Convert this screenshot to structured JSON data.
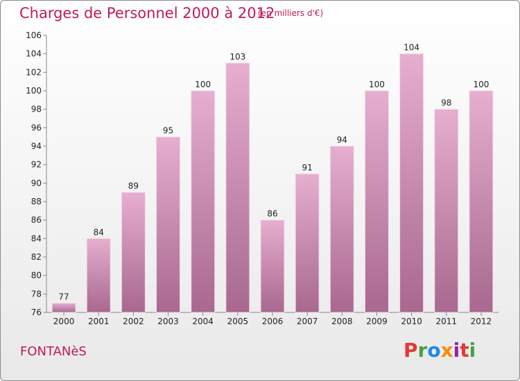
{
  "header": {
    "title": "Charges de Personnel 2000 à 2012",
    "subtitle": "(en milliers d'€)"
  },
  "footer": {
    "commune": "FONTANèS",
    "logo": {
      "letters": [
        "P",
        "r",
        "o",
        "x",
        "i",
        "t",
        "i"
      ],
      "colors": [
        "#e53935",
        "#43a047",
        "#1e88e5",
        "#fb8c00",
        "#8e24aa",
        "#e53935",
        "#43a047"
      ]
    }
  },
  "colors": {
    "bar_light": "#e6aecf",
    "bar_dark": "#a8688f",
    "axis": "#888888",
    "grid": "#ffffff",
    "title": "#c2185b"
  },
  "chart_data": {
    "type": "bar",
    "title": "Charges de Personnel 2000 à 2012",
    "subtitle": "(en milliers d'€)",
    "categories": [
      "2000",
      "2001",
      "2002",
      "2003",
      "2004",
      "2005",
      "2006",
      "2007",
      "2008",
      "2009",
      "2010",
      "2011",
      "2012"
    ],
    "values": [
      77,
      84,
      89,
      95,
      100,
      103,
      86,
      91,
      94,
      100,
      104,
      98,
      100
    ],
    "ylim": [
      76,
      106
    ],
    "yticks": [
      76,
      78,
      80,
      82,
      84,
      86,
      88,
      90,
      92,
      94,
      96,
      98,
      100,
      102,
      104,
      106
    ],
    "data_labels": true,
    "grid": false,
    "legend": "none"
  }
}
